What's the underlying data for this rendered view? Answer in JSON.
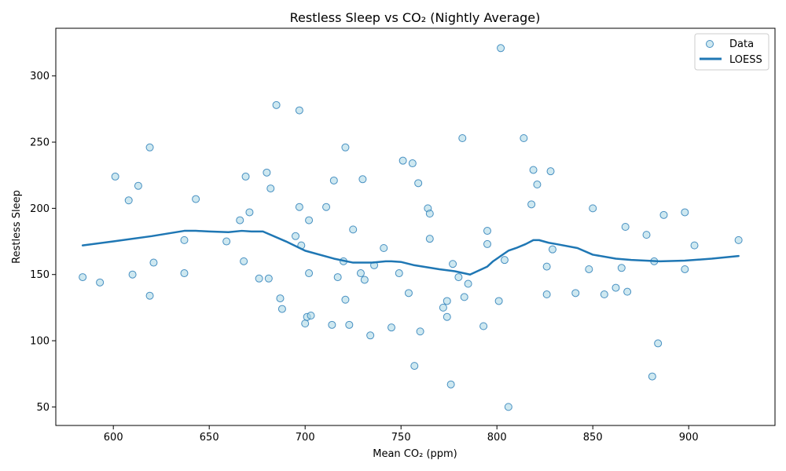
{
  "chart_data": {
    "type": "scatter",
    "title": "Restless Sleep vs CO₂ (Nightly Average)",
    "xlabel": "Mean CO₂ (ppm)",
    "ylabel": "Restless Sleep",
    "xlim": [
      570,
      945
    ],
    "ylim": [
      36,
      336
    ],
    "xticks": [
      600,
      650,
      700,
      750,
      800,
      850,
      900
    ],
    "yticks": [
      50,
      100,
      150,
      200,
      250,
      300
    ],
    "grid": false,
    "legend_position": "top-right",
    "colors": {
      "scatter_fill": "#add8e6",
      "scatter_edge": "#1f77b4",
      "line": "#1f77b4"
    },
    "series": [
      {
        "name": "Data",
        "kind": "scatter",
        "points": [
          [
            584,
            148
          ],
          [
            593,
            144
          ],
          [
            601,
            224
          ],
          [
            608,
            206
          ],
          [
            610,
            150
          ],
          [
            613,
            217
          ],
          [
            619,
            246
          ],
          [
            619,
            134
          ],
          [
            621,
            159
          ],
          [
            637,
            151
          ],
          [
            637,
            176
          ],
          [
            643,
            207
          ],
          [
            659,
            175
          ],
          [
            666,
            191
          ],
          [
            668,
            160
          ],
          [
            669,
            224
          ],
          [
            671,
            197
          ],
          [
            676,
            147
          ],
          [
            680,
            227
          ],
          [
            681,
            147
          ],
          [
            682,
            215
          ],
          [
            685,
            278
          ],
          [
            687,
            132
          ],
          [
            688,
            124
          ],
          [
            695,
            179
          ],
          [
            697,
            274
          ],
          [
            697,
            201
          ],
          [
            698,
            172
          ],
          [
            700,
            113
          ],
          [
            701,
            118
          ],
          [
            702,
            151
          ],
          [
            702,
            191
          ],
          [
            703,
            119
          ],
          [
            711,
            201
          ],
          [
            714,
            112
          ],
          [
            715,
            221
          ],
          [
            717,
            148
          ],
          [
            720,
            160
          ],
          [
            721,
            131
          ],
          [
            721,
            246
          ],
          [
            723,
            112
          ],
          [
            725,
            184
          ],
          [
            729,
            151
          ],
          [
            730,
            222
          ],
          [
            731,
            146
          ],
          [
            734,
            104
          ],
          [
            736,
            157
          ],
          [
            741,
            170
          ],
          [
            745,
            110
          ],
          [
            749,
            151
          ],
          [
            751,
            236
          ],
          [
            754,
            136
          ],
          [
            756,
            234
          ],
          [
            757,
            81
          ],
          [
            759,
            219
          ],
          [
            760,
            107
          ],
          [
            764,
            200
          ],
          [
            765,
            196
          ],
          [
            765,
            177
          ],
          [
            772,
            125
          ],
          [
            774,
            118
          ],
          [
            774,
            130
          ],
          [
            776,
            67
          ],
          [
            777,
            158
          ],
          [
            780,
            148
          ],
          [
            782,
            253
          ],
          [
            783,
            133
          ],
          [
            785,
            143
          ],
          [
            793,
            111
          ],
          [
            795,
            173
          ],
          [
            795,
            183
          ],
          [
            801,
            130
          ],
          [
            802,
            321
          ],
          [
            804,
            161
          ],
          [
            806,
            50
          ],
          [
            814,
            253
          ],
          [
            818,
            203
          ],
          [
            819,
            229
          ],
          [
            821,
            218
          ],
          [
            826,
            135
          ],
          [
            826,
            156
          ],
          [
            828,
            228
          ],
          [
            829,
            169
          ],
          [
            841,
            136
          ],
          [
            848,
            154
          ],
          [
            850,
            200
          ],
          [
            856,
            135
          ],
          [
            862,
            140
          ],
          [
            865,
            155
          ],
          [
            867,
            186
          ],
          [
            868,
            137
          ],
          [
            878,
            180
          ],
          [
            881,
            73
          ],
          [
            882,
            160
          ],
          [
            884,
            98
          ],
          [
            887,
            195
          ],
          [
            898,
            197
          ],
          [
            898,
            154
          ],
          [
            903,
            172
          ],
          [
            926,
            176
          ]
        ]
      },
      {
        "name": "LOESS",
        "kind": "line",
        "points": [
          [
            584,
            172
          ],
          [
            600,
            175
          ],
          [
            620,
            179
          ],
          [
            637,
            183
          ],
          [
            643,
            183
          ],
          [
            650,
            182.5
          ],
          [
            660,
            182
          ],
          [
            667,
            183
          ],
          [
            672,
            182.5
          ],
          [
            678,
            182.5
          ],
          [
            690,
            175
          ],
          [
            700,
            168
          ],
          [
            715,
            162
          ],
          [
            725,
            159
          ],
          [
            735,
            159
          ],
          [
            742,
            160
          ],
          [
            745,
            160
          ],
          [
            750,
            159.5
          ],
          [
            757,
            157
          ],
          [
            770,
            154
          ],
          [
            778,
            152.5
          ],
          [
            786,
            150
          ],
          [
            795,
            156
          ],
          [
            798,
            160
          ],
          [
            806,
            168
          ],
          [
            810,
            170
          ],
          [
            815,
            173
          ],
          [
            819,
            176
          ],
          [
            822,
            176
          ],
          [
            827,
            174
          ],
          [
            831,
            173
          ],
          [
            842,
            170
          ],
          [
            850,
            165
          ],
          [
            862,
            162
          ],
          [
            870,
            161
          ],
          [
            885,
            160
          ],
          [
            898,
            160.5
          ],
          [
            912,
            162
          ],
          [
            926,
            164
          ]
        ]
      }
    ]
  }
}
